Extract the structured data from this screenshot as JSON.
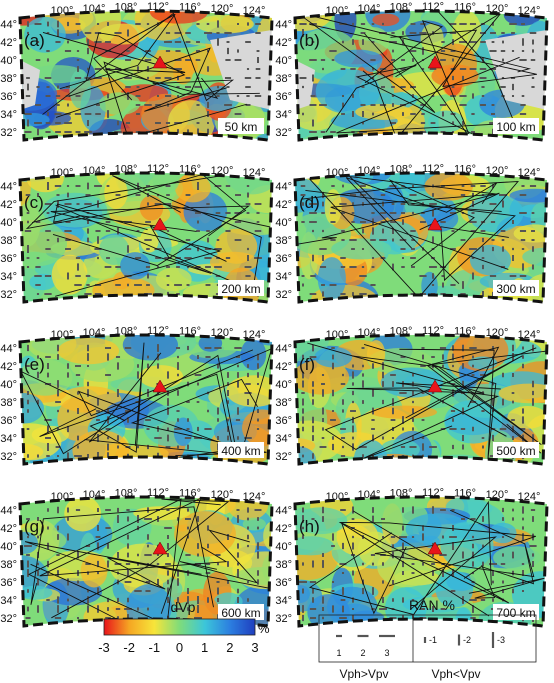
{
  "panels": [
    {
      "letter": "(a)",
      "depth": "50 km",
      "masked": true
    },
    {
      "letter": "(b)",
      "depth": "100 km",
      "masked": true
    },
    {
      "letter": "(c)",
      "depth": "200 km",
      "masked": false
    },
    {
      "letter": "(d)",
      "depth": "300 km",
      "masked": false
    },
    {
      "letter": "(e)",
      "depth": "400 km",
      "masked": false
    },
    {
      "letter": "(f)",
      "depth": "500 km",
      "masked": false
    },
    {
      "letter": "(g)",
      "depth": "600 km",
      "masked": false
    },
    {
      "letter": "(h)",
      "depth": "700 km",
      "masked": false
    }
  ],
  "lon_ticks": [
    "100°",
    "104°",
    "108°",
    "112°",
    "116°",
    "120°",
    "124°"
  ],
  "lat_ticks": [
    "44°",
    "42°",
    "40°",
    "38°",
    "36°",
    "34°",
    "32°"
  ],
  "station_marker": {
    "color": "#e8141b",
    "shape": "triangle"
  },
  "colorbar": {
    "title": "dVp",
    "unit": "%",
    "ticks": [
      "-3",
      "-2",
      "-1",
      "0",
      "1",
      "2",
      "3"
    ],
    "range": [
      -3,
      3
    ],
    "colors": [
      "#e8141b",
      "#f5a623",
      "#f7e53a",
      "#7fdc7a",
      "#3cc6d9",
      "#2c7fe0",
      "#1f3fbf"
    ]
  },
  "legend": {
    "title": "RAN %",
    "horizontal_values": [
      "1",
      "2",
      "3"
    ],
    "vertical_values": [
      "-1",
      "-2",
      "-3"
    ],
    "horizontal_caption": "Vph>Vpv",
    "vertical_caption": "Vph<Vpv"
  }
}
